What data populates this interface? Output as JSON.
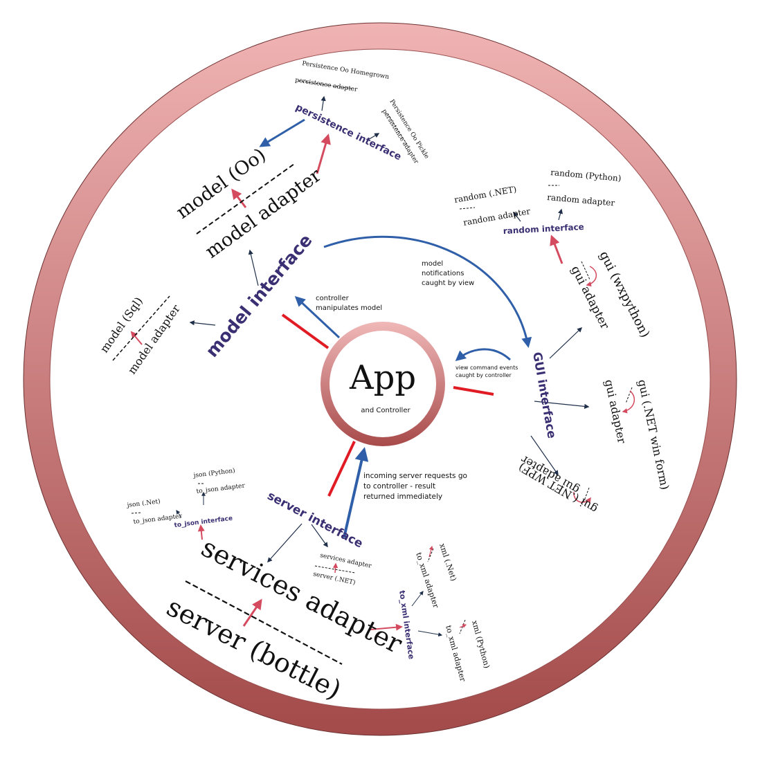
{
  "colors": {
    "ring_light": "#f0b3b3",
    "ring_dark": "#a34a4a",
    "interface_text": "#3a2f72",
    "blue_arrow": "#2f5fa8",
    "red_arrow": "#e01b24",
    "pink_arrow": "#d44a5e",
    "dark_arrow": "#1f2f4a"
  },
  "core": {
    "title": "App",
    "subtitle": "and Controller"
  },
  "interfaces": {
    "model": "model interface",
    "gui": "GUI interface",
    "server": "server interface",
    "persistence": "persistence interface",
    "random": "random interface",
    "to_json": "to_json interface",
    "to_xml": "to_xml interface"
  },
  "annotations": {
    "controller_model": [
      "controller",
      "manipulates model"
    ],
    "model_notifications": [
      "model",
      "notifications",
      "caught by view"
    ],
    "view_commands": [
      "view command events",
      "caught by controller"
    ],
    "server_requests": [
      "incoming server requests go",
      "to controller - result",
      "returned immediately"
    ]
  },
  "model_side": {
    "oo_model": "model (Oo)",
    "oo_adapter": "model adapter",
    "sql_model": "model (Sql)",
    "sql_adapter": "model adapter",
    "persist_homegrown": "Persistence Oo Homegrown",
    "persist_homegrown_adapter": "persistence adapter",
    "persist_pickle": "Persistence Oo Pickle",
    "persist_pickle_adapter": "persistence adapter"
  },
  "gui_side": {
    "random_net": "random (.NET)",
    "random_net_adapter": "random adapter",
    "random_python": "random (Python)",
    "random_python_adapter": "random adapter",
    "wx": "gui (wxpython)",
    "wx_adapter": "gui adapter",
    "winform": "gui (.NET win form)",
    "winform_adapter": "gui adapter",
    "wpf": "gui (.NET WPF)",
    "wpf_adapter": "gui adapter"
  },
  "server_side": {
    "services_adapter_big": "services adapter",
    "server_bottle": "server (bottle)",
    "services_adapter_small": "services adapter",
    "server_net": "server (.NET)",
    "json_net": "json (.Net)",
    "json_net_adapter": "to_json adapter",
    "json_python": "json (Python)",
    "json_python_adapter": "to_json adapter",
    "xml_net": "xml (.Net)",
    "xml_net_adapter": "to_xml adapter",
    "xml_python": "xml (Python)",
    "xml_python_adapter": "to_xml adapter"
  }
}
